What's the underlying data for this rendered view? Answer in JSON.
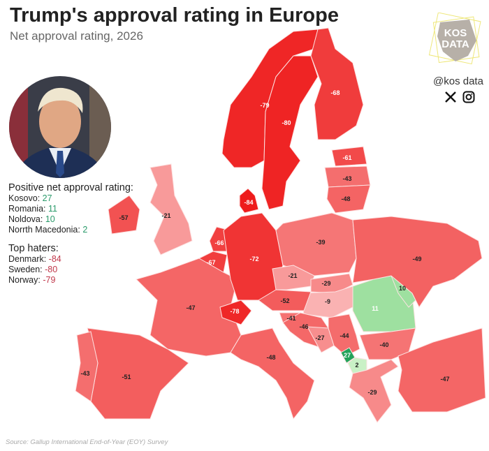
{
  "header": {
    "title": "Trump's approval rating in Europe",
    "subtitle": "Net approval rating, 2026"
  },
  "branding": {
    "logo_text": "KOS DATA",
    "handle": "@kos data",
    "icons": [
      "x-icon",
      "instagram-icon"
    ]
  },
  "positive": {
    "heading": "Positive net approval rating:",
    "items": [
      {
        "name": "Kosovo",
        "value": "27"
      },
      {
        "name": "Romania",
        "value": "11"
      },
      {
        "name": "Noldova",
        "value": "10"
      },
      {
        "name": "Norrth Macedonia",
        "value": "2"
      }
    ]
  },
  "haters": {
    "heading": "Top haters:",
    "items": [
      {
        "name": "Denmark",
        "value": "-84"
      },
      {
        "name": "Sweden",
        "value": "-80"
      },
      {
        "name": "Norway",
        "value": "-79"
      }
    ]
  },
  "source": "Source: Gallup International End-of-Year (EOY) Survey",
  "colors": {
    "strong_negative": "#ee1c1c",
    "weak_negative": "#fbc4c4",
    "weak_positive": "#d4f5cf",
    "positive": "#9ee0a0",
    "strong_positive": "#22a35a",
    "positive_text": "#2a9a6a",
    "negative_text": "#c0384b"
  },
  "map_data": {
    "countries": [
      {
        "id": "norway",
        "value": -79
      },
      {
        "id": "sweden",
        "value": -80
      },
      {
        "id": "finland",
        "value": -68
      },
      {
        "id": "estonia",
        "value": -61
      },
      {
        "id": "latvia",
        "value": -43
      },
      {
        "id": "lithuania",
        "value": -48
      },
      {
        "id": "denmark",
        "value": -84
      },
      {
        "id": "uk",
        "value": -21
      },
      {
        "id": "ireland",
        "value": -57
      },
      {
        "id": "netherlands",
        "value": -66
      },
      {
        "id": "belgium",
        "value": -67
      },
      {
        "id": "france",
        "value": -47
      },
      {
        "id": "germany",
        "value": -72
      },
      {
        "id": "poland",
        "value": -39
      },
      {
        "id": "czechia",
        "value": -21
      },
      {
        "id": "slovakia",
        "value": -29
      },
      {
        "id": "hungary",
        "value": -9
      },
      {
        "id": "austria",
        "value": -52
      },
      {
        "id": "switzerland",
        "value": -78
      },
      {
        "id": "slovenia",
        "value": -41
      },
      {
        "id": "croatia",
        "value": -46
      },
      {
        "id": "bosnia",
        "value": -27
      },
      {
        "id": "serbia",
        "value": -44
      },
      {
        "id": "romania",
        "value": 11
      },
      {
        "id": "moldova",
        "value": 10
      },
      {
        "id": "ukraine",
        "value": -49
      },
      {
        "id": "kosovo",
        "value": 27
      },
      {
        "id": "north-macedonia",
        "value": 2
      },
      {
        "id": "bulgaria",
        "value": -40
      },
      {
        "id": "greece",
        "value": -29
      },
      {
        "id": "turkey",
        "value": -47
      },
      {
        "id": "italy",
        "value": -48
      },
      {
        "id": "spain",
        "value": -51
      },
      {
        "id": "portugal",
        "value": -43
      }
    ]
  }
}
